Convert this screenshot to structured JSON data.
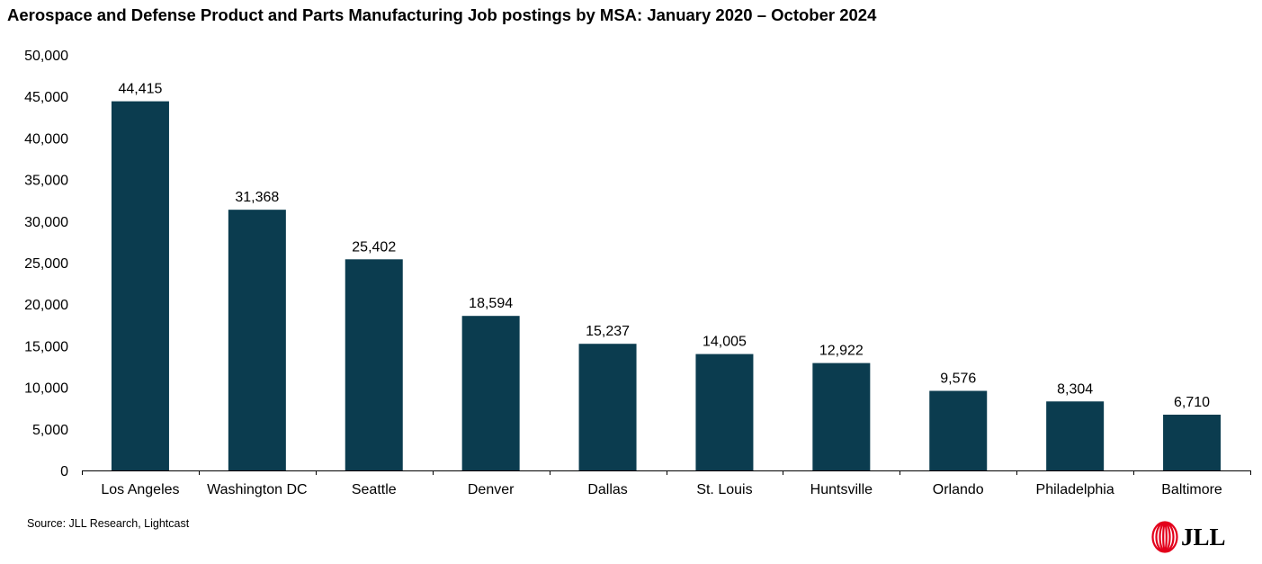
{
  "title": "Aerospace and Defense Product and Parts Manufacturing Job postings by MSA: January 2020 – October 2024",
  "source": "Source: JLL Research, Lightcast",
  "logo": {
    "text": "JLL",
    "icon": "jll-logo-icon",
    "color": "#e3001b"
  },
  "colors": {
    "bar": "#0b3c4f",
    "axis": "#000000"
  },
  "chart_data": {
    "type": "bar",
    "title": "Aerospace and Defense Product and Parts Manufacturing Job postings by MSA: January 2020 – October 2024",
    "categories": [
      "Los Angeles",
      "Washington DC",
      "Seattle",
      "Denver",
      "Dallas",
      "St. Louis",
      "Huntsville",
      "Orlando",
      "Philadelphia",
      "Baltimore"
    ],
    "values": [
      44415,
      31368,
      25402,
      18594,
      15237,
      14005,
      12922,
      9576,
      8304,
      6710
    ],
    "data_labels": [
      "44,415",
      "31,368",
      "25,402",
      "18,594",
      "15,237",
      "14,005",
      "12,922",
      "9,576",
      "8,304",
      "6,710"
    ],
    "ylim": [
      0,
      50000
    ],
    "yticks": [
      0,
      5000,
      10000,
      15000,
      20000,
      25000,
      30000,
      35000,
      40000,
      45000,
      50000
    ],
    "ytick_labels": [
      "0",
      "5,000",
      "10,000",
      "15,000",
      "20,000",
      "25,000",
      "30,000",
      "35,000",
      "40,000",
      "45,000",
      "50,000"
    ],
    "xlabel": "",
    "ylabel": "",
    "grid": false,
    "legend": "none"
  }
}
